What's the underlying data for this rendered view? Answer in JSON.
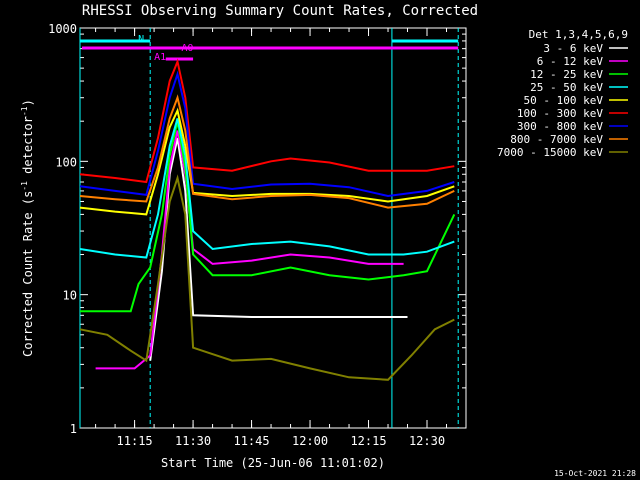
{
  "chart_data": {
    "type": "line",
    "title": "RHESSI Observing Summary Count Rates, Corrected",
    "xlabel": "Start Time (25-Jun-06 11:01:02)",
    "ylabel": "Corrected Count Rate (s⁻¹ detector⁻¹)",
    "ylabel_main": "Corrected Count Rate (s",
    "ylabel_sup1": "-1",
    "ylabel_mid": " detector",
    "ylabel_sup2": "-1",
    "ylabel_end": ")",
    "yscale": "log",
    "ylim": [
      1,
      1000
    ],
    "yticks": [
      1,
      10,
      100,
      1000
    ],
    "ytick_labels": [
      "1",
      "10",
      "100",
      "1000"
    ],
    "xlim": [
      "11:01",
      "12:40"
    ],
    "xticks": [
      "11:15",
      "11:30",
      "11:45",
      "12:00",
      "12:15",
      "12:30"
    ],
    "legend_title": "Det 1,3,4,5,6,9",
    "legend_position": "right",
    "timestamp": "15-Oct-2021 21:28",
    "annotations": {
      "night": "N",
      "attenuator_a0": "A0",
      "attenuator_a1": "A1"
    },
    "night_intervals": [
      [
        "11:01",
        "11:19"
      ],
      [
        "12:21",
        "12:38"
      ]
    ],
    "attenuator_interval": [
      "11:19",
      "12:38"
    ],
    "a1_interval": [
      "11:23",
      "11:30"
    ],
    "series": [
      {
        "name": "3 - 6 keV",
        "color": "#ffffff",
        "points": [
          [
            "11:19",
            3.2
          ],
          [
            "11:22",
            15
          ],
          [
            "11:24",
            80
          ],
          [
            "11:26",
            150
          ],
          [
            "11:28",
            60
          ],
          [
            "11:30",
            7
          ],
          [
            "11:45",
            6.8
          ],
          [
            "12:00",
            6.8
          ],
          [
            "12:15",
            6.8
          ],
          [
            "12:25",
            6.8
          ]
        ]
      },
      {
        "name": "6 - 12 keV",
        "color": "#ff00ff",
        "points": [
          [
            "11:05",
            2.8
          ],
          [
            "11:15",
            2.8
          ],
          [
            "11:19",
            3.5
          ],
          [
            "11:22",
            20
          ],
          [
            "11:24",
            90
          ],
          [
            "11:26",
            170
          ],
          [
            "11:28",
            80
          ],
          [
            "11:30",
            22
          ],
          [
            "11:35",
            17
          ],
          [
            "11:45",
            18
          ],
          [
            "11:55",
            20
          ],
          [
            "12:05",
            19
          ],
          [
            "12:15",
            17
          ],
          [
            "12:24",
            17
          ]
        ]
      },
      {
        "name": "12 - 25 keV",
        "color": "#00ff00",
        "points": [
          [
            "11:01",
            7.5
          ],
          [
            "11:10",
            7.5
          ],
          [
            "11:14",
            7.5
          ],
          [
            "11:16",
            12
          ],
          [
            "11:19",
            16
          ],
          [
            "11:22",
            40
          ],
          [
            "11:24",
            110
          ],
          [
            "11:26",
            200
          ],
          [
            "11:28",
            90
          ],
          [
            "11:30",
            20
          ],
          [
            "11:35",
            14
          ],
          [
            "11:45",
            14
          ],
          [
            "11:55",
            16
          ],
          [
            "12:05",
            14
          ],
          [
            "12:15",
            13
          ],
          [
            "12:24",
            14
          ],
          [
            "12:30",
            15
          ],
          [
            "12:37",
            40
          ]
        ]
      },
      {
        "name": "25 - 50 keV",
        "color": "#00ffff",
        "points": [
          [
            "11:01",
            22
          ],
          [
            "11:10",
            20
          ],
          [
            "11:18",
            19
          ],
          [
            "11:21",
            40
          ],
          [
            "11:24",
            130
          ],
          [
            "11:26",
            210
          ],
          [
            "11:28",
            110
          ],
          [
            "11:30",
            30
          ],
          [
            "11:35",
            22
          ],
          [
            "11:45",
            24
          ],
          [
            "11:55",
            25
          ],
          [
            "12:05",
            23
          ],
          [
            "12:15",
            20
          ],
          [
            "12:24",
            20
          ],
          [
            "12:30",
            21
          ],
          [
            "12:37",
            25
          ]
        ]
      },
      {
        "name": "50 - 100 keV",
        "color": "#ffff00",
        "points": [
          [
            "11:01",
            45
          ],
          [
            "11:10",
            42
          ],
          [
            "11:18",
            40
          ],
          [
            "11:21",
            80
          ],
          [
            "11:24",
            180
          ],
          [
            "11:26",
            240
          ],
          [
            "11:28",
            130
          ],
          [
            "11:30",
            58
          ],
          [
            "11:40",
            55
          ],
          [
            "11:50",
            57
          ],
          [
            "12:00",
            57
          ],
          [
            "12:10",
            55
          ],
          [
            "12:20",
            50
          ],
          [
            "12:30",
            55
          ],
          [
            "12:37",
            65
          ]
        ]
      },
      {
        "name": "100 - 300 keV",
        "color": "#ff0000",
        "points": [
          [
            "11:01",
            80
          ],
          [
            "11:10",
            75
          ],
          [
            "11:18",
            70
          ],
          [
            "11:21",
            150
          ],
          [
            "11:24",
            400
          ],
          [
            "11:26",
            560
          ],
          [
            "11:28",
            300
          ],
          [
            "11:30",
            90
          ],
          [
            "11:40",
            85
          ],
          [
            "11:50",
            100
          ],
          [
            "11:55",
            105
          ],
          [
            "12:05",
            98
          ],
          [
            "12:15",
            85
          ],
          [
            "12:24",
            85
          ],
          [
            "12:30",
            85
          ],
          [
            "12:37",
            92
          ]
        ]
      },
      {
        "name": "300 - 800 keV",
        "color": "#0000ff",
        "points": [
          [
            "11:01",
            65
          ],
          [
            "11:10",
            60
          ],
          [
            "11:18",
            56
          ],
          [
            "11:21",
            120
          ],
          [
            "11:24",
            300
          ],
          [
            "11:26",
            450
          ],
          [
            "11:28",
            250
          ],
          [
            "11:30",
            68
          ],
          [
            "11:40",
            62
          ],
          [
            "11:50",
            67
          ],
          [
            "12:00",
            68
          ],
          [
            "12:10",
            64
          ],
          [
            "12:20",
            55
          ],
          [
            "12:30",
            60
          ],
          [
            "12:37",
            70
          ]
        ]
      },
      {
        "name": "800 - 7000 keV",
        "color": "#ff8000",
        "points": [
          [
            "11:01",
            55
          ],
          [
            "11:10",
            52
          ],
          [
            "11:18",
            50
          ],
          [
            "11:21",
            90
          ],
          [
            "11:24",
            210
          ],
          [
            "11:26",
            300
          ],
          [
            "11:28",
            170
          ],
          [
            "11:30",
            57
          ],
          [
            "11:40",
            52
          ],
          [
            "11:50",
            55
          ],
          [
            "12:00",
            56
          ],
          [
            "12:10",
            53
          ],
          [
            "12:20",
            45
          ],
          [
            "12:30",
            48
          ],
          [
            "12:37",
            60
          ]
        ]
      },
      {
        "name": "7000 - 15000 keV",
        "color": "#808000",
        "points": [
          [
            "11:01",
            5.5
          ],
          [
            "11:08",
            5
          ],
          [
            "11:14",
            3.8
          ],
          [
            "11:18",
            3.2
          ],
          [
            "11:21",
            12
          ],
          [
            "11:24",
            50
          ],
          [
            "11:26",
            75
          ],
          [
            "11:28",
            40
          ],
          [
            "11:30",
            4
          ],
          [
            "11:40",
            3.2
          ],
          [
            "11:50",
            3.3
          ],
          [
            "12:00",
            2.8
          ],
          [
            "12:10",
            2.4
          ],
          [
            "12:20",
            2.3
          ],
          [
            "12:26",
            3.5
          ],
          [
            "12:32",
            5.5
          ],
          [
            "12:37",
            6.5
          ]
        ]
      }
    ]
  }
}
